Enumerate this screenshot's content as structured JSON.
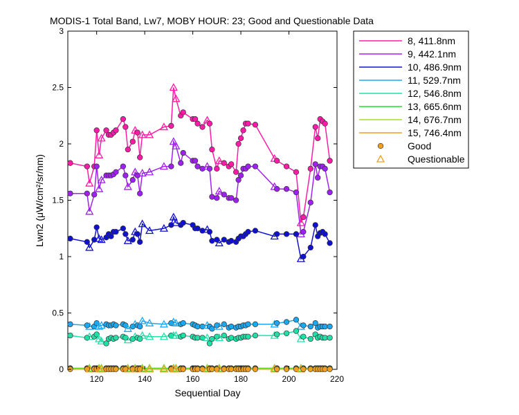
{
  "chart_data": {
    "type": "line",
    "title": "MODIS-1 Total Band, Lw7, MOBY HOUR: 23;  Good and Questionable Data",
    "xlabel": "Sequential Day",
    "ylabel": "Lwn2 (μW/cm²/sr/nm)",
    "xlim": [
      108,
      220
    ],
    "ylim": [
      0,
      3
    ],
    "xticks": [
      120,
      140,
      160,
      180,
      200,
      220
    ],
    "yticks": [
      0,
      0.5,
      1,
      1.5,
      2,
      2.5,
      3
    ],
    "ytick_labels": [
      "0",
      "0.5",
      "1",
      "1.5",
      "2",
      "2.5",
      "3"
    ],
    "grid": false,
    "legend_position": "outside-right",
    "x": [
      109,
      116,
      117,
      119,
      120,
      121,
      122,
      124,
      125,
      126,
      127,
      128,
      131,
      132,
      133,
      135,
      136,
      137,
      138,
      139,
      142,
      148,
      151,
      152,
      153,
      155,
      156,
      160,
      161,
      162,
      164,
      166,
      167,
      168,
      170,
      171,
      173,
      175,
      176,
      178,
      179,
      180,
      181,
      182,
      183,
      186,
      194,
      195,
      199,
      203,
      205,
      206,
      209,
      211,
      212,
      213,
      214,
      215,
      217
    ],
    "series": [
      {
        "name": "8, 411.8nm",
        "color": "#ff1aa8",
        "values": [
          1.83,
          1.8,
          1.65,
          1.8,
          2.12,
          1.9,
          2.05,
          2.12,
          2.08,
          2.08,
          2.1,
          2.12,
          2.22,
          2.15,
          1.95,
          2.02,
          2.12,
          2.1,
          1.88,
          2.08,
          2.08,
          2.15,
          2.16,
          2.5,
          2.4,
          2.25,
          2.28,
          2.22,
          2.22,
          2.18,
          2.15,
          2.21,
          2.18,
          1.95,
          1.78,
          1.85,
          1.83,
          1.8,
          1.82,
          1.75,
          2.0,
          2.05,
          2.12,
          2.18,
          2.18,
          2.17,
          1.87,
          1.85,
          1.8,
          1.75,
          1.3,
          1.35,
          1.78,
          2.15,
          2.05,
          2.22,
          2.2,
          2.18,
          1.85
        ],
        "questionable": [
          0,
          0,
          1,
          0,
          0,
          1,
          1,
          0,
          0,
          0,
          0,
          0,
          0,
          0,
          0,
          0,
          1,
          0,
          0,
          1,
          1,
          1,
          0,
          1,
          1,
          0,
          0,
          0,
          0,
          0,
          0,
          1,
          0,
          0,
          0,
          1,
          0,
          0,
          0,
          0,
          0,
          0,
          0,
          0,
          0,
          0,
          1,
          0,
          0,
          0,
          1,
          0,
          0,
          0,
          0,
          0,
          0,
          0,
          0
        ]
      },
      {
        "name": "9, 442.1nm",
        "color": "#a020f0",
        "values": [
          1.56,
          1.56,
          1.4,
          1.55,
          1.8,
          1.6,
          1.68,
          1.72,
          1.72,
          1.72,
          1.73,
          1.75,
          1.8,
          1.72,
          1.62,
          1.68,
          1.75,
          1.72,
          1.56,
          1.74,
          1.75,
          1.8,
          1.8,
          2.02,
          1.98,
          1.83,
          1.92,
          1.85,
          1.85,
          1.8,
          1.78,
          1.8,
          1.78,
          1.53,
          1.52,
          1.58,
          1.55,
          1.52,
          1.52,
          1.5,
          1.68,
          1.72,
          1.78,
          1.78,
          1.8,
          1.8,
          1.62,
          1.6,
          1.6,
          1.57,
          1.2,
          1.22,
          1.48,
          1.82,
          1.7,
          1.8,
          1.8,
          1.78,
          1.57
        ],
        "questionable": [
          0,
          0,
          1,
          0,
          0,
          1,
          1,
          0,
          0,
          0,
          0,
          0,
          0,
          0,
          1,
          0,
          1,
          0,
          0,
          1,
          1,
          1,
          0,
          1,
          1,
          0,
          0,
          0,
          0,
          0,
          0,
          1,
          0,
          0,
          0,
          1,
          0,
          0,
          0,
          0,
          0,
          0,
          0,
          0,
          0,
          0,
          1,
          0,
          0,
          0,
          1,
          0,
          0,
          0,
          0,
          0,
          0,
          0,
          0
        ]
      },
      {
        "name": "10, 486.9nm",
        "color": "#1010d0",
        "values": [
          1.16,
          1.13,
          1.08,
          1.15,
          1.26,
          1.16,
          1.15,
          1.17,
          1.2,
          1.18,
          1.22,
          1.22,
          1.25,
          1.2,
          1.14,
          1.15,
          1.22,
          1.2,
          1.13,
          1.29,
          1.23,
          1.25,
          1.28,
          1.35,
          1.3,
          1.28,
          1.3,
          1.28,
          1.25,
          1.25,
          1.23,
          1.24,
          1.22,
          1.14,
          1.15,
          1.12,
          1.15,
          1.13,
          1.14,
          1.13,
          1.16,
          1.18,
          1.18,
          1.2,
          1.22,
          1.23,
          1.18,
          1.2,
          1.2,
          1.2,
          0.98,
          1.0,
          1.08,
          1.28,
          1.18,
          1.21,
          1.22,
          1.2,
          1.12
        ],
        "questionable": [
          0,
          0,
          1,
          0,
          0,
          1,
          1,
          0,
          0,
          0,
          0,
          0,
          0,
          0,
          1,
          0,
          1,
          0,
          0,
          1,
          1,
          1,
          0,
          1,
          1,
          0,
          0,
          0,
          0,
          0,
          0,
          1,
          0,
          0,
          0,
          1,
          0,
          0,
          0,
          0,
          0,
          0,
          0,
          0,
          0,
          0,
          1,
          0,
          0,
          0,
          1,
          0,
          0,
          0,
          0,
          0,
          0,
          0,
          0
        ]
      },
      {
        "name": "11, 529.7nm",
        "color": "#1ca8f0",
        "values": [
          0.4,
          0.39,
          0.38,
          0.38,
          0.41,
          0.38,
          0.39,
          0.4,
          0.39,
          0.39,
          0.4,
          0.39,
          0.4,
          0.39,
          0.36,
          0.38,
          0.4,
          0.39,
          0.38,
          0.43,
          0.41,
          0.4,
          0.41,
          0.42,
          0.41,
          0.4,
          0.41,
          0.4,
          0.39,
          0.38,
          0.38,
          0.39,
          0.38,
          0.36,
          0.39,
          0.38,
          0.4,
          0.37,
          0.38,
          0.37,
          0.38,
          0.38,
          0.39,
          0.39,
          0.4,
          0.4,
          0.4,
          0.41,
          0.42,
          0.44,
          0.38,
          0.39,
          0.38,
          0.41,
          0.37,
          0.38,
          0.38,
          0.38,
          0.38
        ],
        "questionable": [
          0,
          0,
          1,
          0,
          0,
          1,
          1,
          0,
          0,
          0,
          0,
          0,
          0,
          0,
          1,
          0,
          1,
          0,
          0,
          1,
          1,
          1,
          0,
          1,
          1,
          0,
          0,
          0,
          0,
          0,
          0,
          1,
          0,
          0,
          0,
          1,
          0,
          0,
          0,
          0,
          0,
          0,
          0,
          0,
          0,
          0,
          1,
          0,
          0,
          0,
          1,
          0,
          0,
          0,
          0,
          0,
          0,
          0,
          0
        ]
      },
      {
        "name": "12, 546.8nm",
        "color": "#20e0a8",
        "values": [
          0.3,
          0.28,
          0.29,
          0.29,
          0.31,
          0.27,
          0.25,
          0.23,
          0.27,
          0.28,
          0.27,
          0.28,
          0.29,
          0.28,
          0.26,
          0.27,
          0.29,
          0.28,
          0.27,
          0.3,
          0.29,
          0.29,
          0.3,
          0.3,
          0.3,
          0.29,
          0.3,
          0.29,
          0.28,
          0.28,
          0.28,
          0.28,
          0.23,
          0.27,
          0.29,
          0.28,
          0.3,
          0.27,
          0.28,
          0.27,
          0.28,
          0.28,
          0.29,
          0.29,
          0.29,
          0.3,
          0.3,
          0.31,
          0.32,
          0.34,
          0.27,
          0.29,
          0.27,
          0.31,
          0.28,
          0.29,
          0.28,
          0.28,
          0.28
        ],
        "questionable": [
          0,
          0,
          1,
          0,
          0,
          1,
          1,
          0,
          0,
          0,
          0,
          0,
          0,
          0,
          1,
          0,
          1,
          0,
          0,
          1,
          1,
          1,
          0,
          1,
          1,
          0,
          0,
          0,
          0,
          0,
          0,
          1,
          0,
          0,
          0,
          1,
          0,
          0,
          0,
          0,
          0,
          0,
          0,
          0,
          0,
          0,
          1,
          0,
          0,
          0,
          1,
          0,
          0,
          0,
          0,
          0,
          0,
          0,
          0
        ]
      },
      {
        "name": "13, 665.6nm",
        "color": "#20e020",
        "values": [
          0.01,
          0.01,
          0.01,
          0.01,
          0.01,
          0.01,
          0.01,
          0.01,
          0.01,
          0.01,
          0.01,
          0.01,
          0.01,
          0.01,
          0.01,
          0.01,
          0.01,
          0.01,
          0.01,
          0.01,
          0.01,
          0.01,
          0.01,
          0.01,
          0.01,
          0.01,
          0.01,
          0.01,
          0.01,
          0.01,
          0.01,
          0.01,
          0.01,
          0.01,
          0.01,
          0.01,
          0.01,
          0.01,
          0.01,
          0.01,
          0.01,
          0.01,
          0.01,
          0.01,
          0.01,
          0.01,
          0.01,
          0.01,
          0.01,
          0.01,
          0.01,
          0.01,
          0.01,
          0.01,
          0.01,
          0.01,
          0.01,
          0.01,
          0.01
        ],
        "questionable": [
          0,
          0,
          1,
          0,
          0,
          1,
          1,
          0,
          0,
          0,
          0,
          0,
          0,
          0,
          1,
          0,
          1,
          0,
          0,
          1,
          1,
          1,
          0,
          1,
          1,
          0,
          0,
          0,
          0,
          0,
          0,
          1,
          0,
          0,
          0,
          1,
          0,
          0,
          0,
          0,
          0,
          0,
          0,
          0,
          0,
          0,
          1,
          0,
          0,
          0,
          1,
          0,
          0,
          0,
          0,
          0,
          0,
          0,
          0
        ]
      },
      {
        "name": "14, 676.7nm",
        "color": "#a8e020",
        "values": [
          0.005,
          0.005,
          0.005,
          0.005,
          0.005,
          0.005,
          0.005,
          0.005,
          0.005,
          0.005,
          0.005,
          0.005,
          0.005,
          0.005,
          0.005,
          0.005,
          0.005,
          0.005,
          0.005,
          0.005,
          0.005,
          0.005,
          0.005,
          0.005,
          0.005,
          0.005,
          0.005,
          0.005,
          0.005,
          0.005,
          0.005,
          0.005,
          0.005,
          0.005,
          0.005,
          0.005,
          0.005,
          0.005,
          0.005,
          0.005,
          0.005,
          0.005,
          0.005,
          0.005,
          0.005,
          0.005,
          0.005,
          0.005,
          0.005,
          0.005,
          0.005,
          0.005,
          0.005,
          0.005,
          0.005,
          0.005,
          0.005,
          0.005,
          0.005
        ],
        "questionable": [
          0,
          0,
          1,
          0,
          0,
          1,
          1,
          0,
          0,
          0,
          0,
          0,
          0,
          0,
          1,
          0,
          1,
          0,
          0,
          1,
          1,
          1,
          0,
          1,
          1,
          0,
          0,
          0,
          0,
          0,
          0,
          1,
          0,
          0,
          0,
          1,
          0,
          0,
          0,
          0,
          0,
          0,
          0,
          0,
          0,
          0,
          1,
          0,
          0,
          0,
          1,
          0,
          0,
          0,
          0,
          0,
          0,
          0,
          0
        ]
      },
      {
        "name": "15, 746.4nm",
        "color": "#f0a020",
        "values": [
          0.002,
          0.002,
          0.002,
          0.002,
          0.002,
          0.002,
          0.002,
          0.002,
          0.002,
          0.002,
          0.002,
          0.002,
          0.002,
          0.002,
          0.002,
          0.002,
          0.002,
          0.002,
          0.002,
          0.002,
          0.002,
          0.002,
          0.002,
          0.002,
          0.002,
          0.002,
          0.002,
          0.002,
          0.002,
          0.002,
          0.002,
          0.002,
          0.002,
          0.002,
          0.002,
          0.002,
          0.002,
          0.002,
          0.002,
          0.002,
          0.002,
          0.002,
          0.002,
          0.002,
          0.002,
          0.002,
          0.002,
          0.002,
          0.002,
          0.002,
          0.002,
          0.002,
          0.002,
          0.002,
          0.002,
          0.002,
          0.002,
          0.002,
          0.002
        ],
        "questionable": [
          0,
          0,
          1,
          0,
          0,
          1,
          1,
          0,
          0,
          0,
          0,
          0,
          0,
          0,
          1,
          0,
          1,
          0,
          0,
          1,
          1,
          1,
          0,
          1,
          1,
          0,
          0,
          0,
          0,
          0,
          0,
          1,
          0,
          0,
          0,
          1,
          0,
          0,
          0,
          0,
          0,
          0,
          0,
          0,
          0,
          0,
          1,
          0,
          0,
          0,
          1,
          0,
          0,
          0,
          0,
          0,
          0,
          0,
          0
        ]
      }
    ],
    "marker_legend": [
      {
        "label": "Good",
        "marker": "circle",
        "color": "#f0a020"
      },
      {
        "label": "Questionable",
        "marker": "triangle",
        "color": "#f0a020"
      }
    ]
  }
}
